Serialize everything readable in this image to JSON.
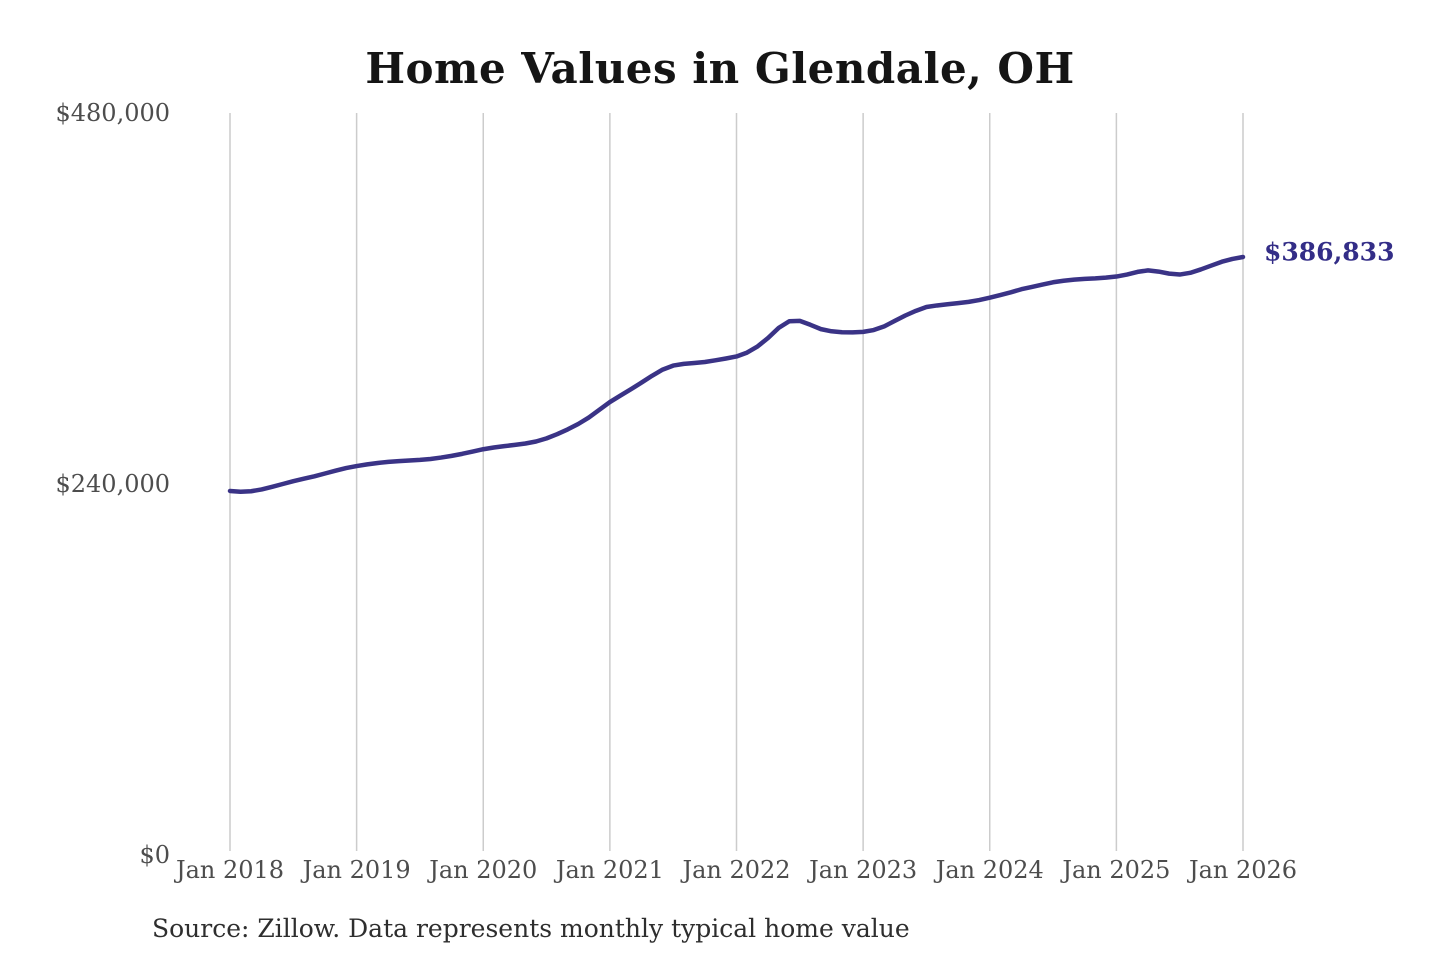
{
  "chart": {
    "title": "Home Values in Glendale, OH",
    "end_label": "$386,833",
    "source": "Source: Zillow. Data represents monthly typical home value",
    "colors": {
      "line": "#3a3386",
      "value_label": "#332d87",
      "grid": "#cccccc",
      "title_text": "#151515",
      "axis_text": "#4d4d4d",
      "source_text": "#2e2e2e",
      "background": "#ffffff"
    }
  },
  "chart_data": {
    "type": "line",
    "title": "Home Values in Glendale, OH",
    "frequency": "monthly",
    "x_start": "2018-01",
    "x_end": "2026-01",
    "x_tick_labels": [
      "Jan 2018",
      "Jan 2019",
      "Jan 2020",
      "Jan 2021",
      "Jan 2022",
      "Jan 2023",
      "Jan 2024",
      "Jan 2025",
      "Jan 2026"
    ],
    "y_ticks": [
      {
        "label": "$0",
        "value": 0
      },
      {
        "label": "$240,000",
        "value": 240000
      },
      {
        "label": "$480,000",
        "value": 480000
      }
    ],
    "ylim": [
      0,
      480000
    ],
    "grid": "vertical-only",
    "legend": "none",
    "series_name": "Typical home value",
    "values": [
      235500,
      235000,
      235300,
      236500,
      238200,
      240000,
      241800,
      243400,
      245000,
      246800,
      248600,
      250300,
      251600,
      252700,
      253600,
      254300,
      254800,
      255200,
      255600,
      256200,
      257100,
      258200,
      259500,
      261000,
      262500,
      263600,
      264500,
      265300,
      266200,
      267500,
      269500,
      272200,
      275300,
      278800,
      283000,
      288000,
      293000,
      297200,
      301300,
      305600,
      310000,
      314000,
      316600,
      317700,
      318300,
      318900,
      320000,
      321200,
      322500,
      325000,
      329000,
      334500,
      341000,
      345300,
      345500,
      343000,
      340200,
      338800,
      338200,
      338100,
      338400,
      339600,
      342000,
      345500,
      349000,
      352000,
      354500,
      355500,
      356300,
      357000,
      357800,
      359000,
      360500,
      362200,
      364000,
      366000,
      367500,
      369000,
      370500,
      371500,
      372200,
      372700,
      373000,
      373500,
      374200,
      375500,
      377200,
      378200,
      377400,
      376100,
      375500,
      376600,
      378800,
      381300,
      383800,
      385600,
      386833
    ],
    "end_point_label": "$386,833",
    "end_point_value": 386833,
    "source": "Source: Zillow. Data represents monthly typical home value"
  }
}
